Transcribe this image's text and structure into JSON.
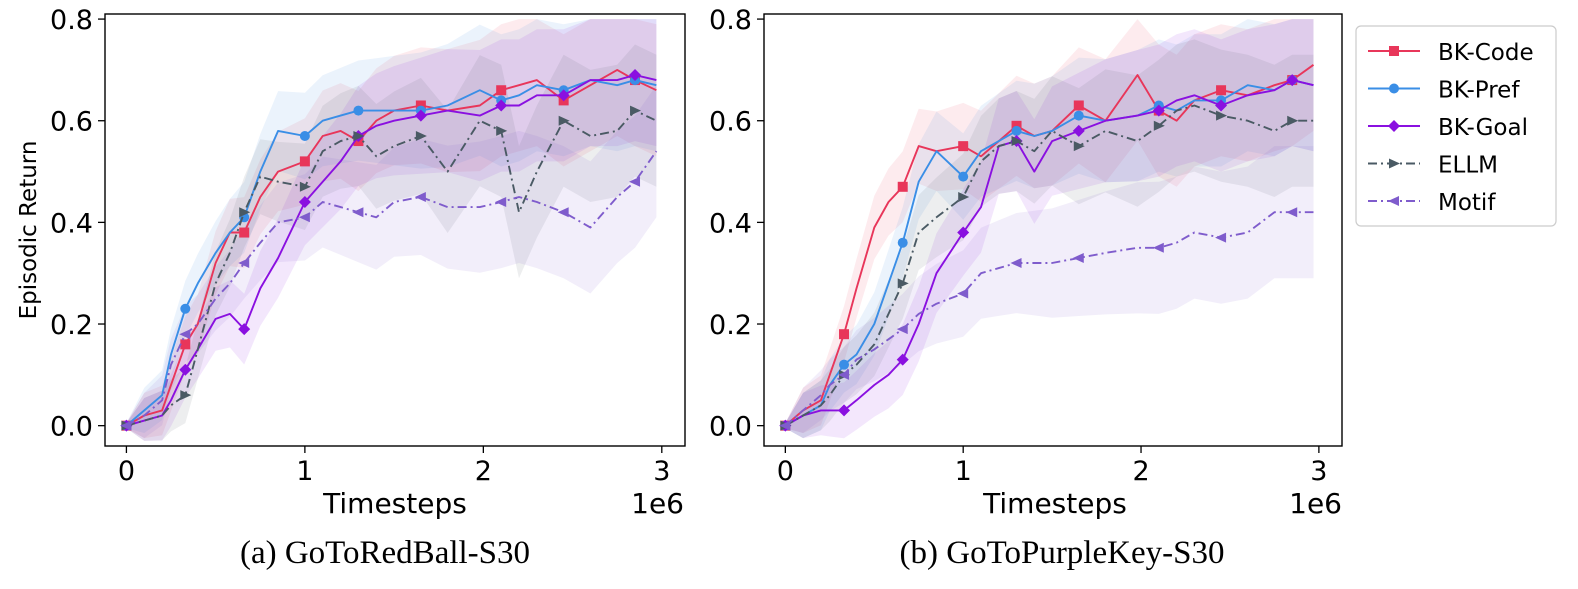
{
  "chart_data": [
    {
      "type": "line",
      "caption": "(a) GoToRedBall-S30",
      "xlabel": "Timesteps",
      "ylabel": "Episodic Return",
      "x_multiplier_label": "1e6",
      "xlim": [
        -0.12,
        3.13
      ],
      "ylim": [
        -0.04,
        0.81
      ],
      "xticks": [
        0,
        1,
        2,
        3
      ],
      "yticks": [
        0.0,
        0.2,
        0.4,
        0.6,
        0.8
      ],
      "series": [
        {
          "name": "BK-Code",
          "x": [
            0,
            0.1,
            0.2,
            0.25,
            0.33,
            0.4,
            0.5,
            0.58,
            0.66,
            0.75,
            0.85,
            1.0,
            1.1,
            1.2,
            1.3,
            1.4,
            1.5,
            1.65,
            1.8,
            1.98,
            2.1,
            2.2,
            2.3,
            2.45,
            2.6,
            2.75,
            2.85,
            2.97
          ],
          "y": [
            0.0,
            0.02,
            0.03,
            0.08,
            0.16,
            0.2,
            0.32,
            0.38,
            0.38,
            0.45,
            0.5,
            0.52,
            0.57,
            0.58,
            0.56,
            0.6,
            0.62,
            0.63,
            0.62,
            0.63,
            0.66,
            0.67,
            0.68,
            0.64,
            0.67,
            0.7,
            0.68,
            0.66
          ]
        },
        {
          "name": "BK-Pref",
          "x": [
            0,
            0.1,
            0.2,
            0.25,
            0.33,
            0.4,
            0.5,
            0.58,
            0.66,
            0.75,
            0.85,
            1.0,
            1.1,
            1.2,
            1.3,
            1.4,
            1.5,
            1.65,
            1.8,
            1.98,
            2.1,
            2.2,
            2.3,
            2.45,
            2.6,
            2.75,
            2.85,
            2.97
          ],
          "y": [
            0.0,
            0.03,
            0.06,
            0.14,
            0.23,
            0.28,
            0.34,
            0.38,
            0.41,
            0.5,
            0.58,
            0.57,
            0.6,
            0.61,
            0.62,
            0.62,
            0.62,
            0.62,
            0.63,
            0.66,
            0.64,
            0.65,
            0.67,
            0.66,
            0.68,
            0.67,
            0.68,
            0.67
          ]
        },
        {
          "name": "BK-Goal",
          "x": [
            0,
            0.1,
            0.2,
            0.25,
            0.33,
            0.4,
            0.5,
            0.58,
            0.66,
            0.75,
            0.85,
            1.0,
            1.1,
            1.2,
            1.3,
            1.4,
            1.5,
            1.65,
            1.8,
            1.98,
            2.1,
            2.2,
            2.3,
            2.45,
            2.6,
            2.75,
            2.85,
            2.97
          ],
          "y": [
            0.0,
            0.01,
            0.02,
            0.05,
            0.11,
            0.15,
            0.21,
            0.22,
            0.19,
            0.27,
            0.33,
            0.44,
            0.48,
            0.52,
            0.57,
            0.59,
            0.6,
            0.61,
            0.62,
            0.61,
            0.63,
            0.63,
            0.65,
            0.65,
            0.68,
            0.68,
            0.69,
            0.68
          ]
        },
        {
          "name": "ELLM",
          "x": [
            0,
            0.1,
            0.2,
            0.25,
            0.33,
            0.4,
            0.5,
            0.58,
            0.66,
            0.75,
            0.85,
            1.0,
            1.1,
            1.2,
            1.3,
            1.4,
            1.5,
            1.65,
            1.8,
            1.98,
            2.1,
            2.2,
            2.3,
            2.45,
            2.6,
            2.75,
            2.85,
            2.97
          ],
          "y": [
            0.0,
            0.01,
            0.02,
            0.04,
            0.06,
            0.15,
            0.28,
            0.34,
            0.42,
            0.49,
            0.48,
            0.47,
            0.54,
            0.56,
            0.57,
            0.53,
            0.55,
            0.57,
            0.5,
            0.6,
            0.58,
            0.42,
            0.5,
            0.6,
            0.57,
            0.58,
            0.62,
            0.6
          ]
        },
        {
          "name": "Motif",
          "x": [
            0,
            0.1,
            0.2,
            0.25,
            0.33,
            0.4,
            0.5,
            0.58,
            0.66,
            0.75,
            0.85,
            1.0,
            1.1,
            1.2,
            1.3,
            1.4,
            1.5,
            1.65,
            1.8,
            1.98,
            2.1,
            2.2,
            2.3,
            2.45,
            2.6,
            2.75,
            2.85,
            2.97
          ],
          "y": [
            0.0,
            0.02,
            0.05,
            0.12,
            0.18,
            0.2,
            0.25,
            0.28,
            0.32,
            0.36,
            0.4,
            0.41,
            0.44,
            0.43,
            0.42,
            0.41,
            0.44,
            0.45,
            0.43,
            0.43,
            0.44,
            0.45,
            0.44,
            0.42,
            0.39,
            0.45,
            0.48,
            0.54
          ]
        }
      ]
    },
    {
      "type": "line",
      "caption": "(b) GoToPurpleKey-S30",
      "xlabel": "Timesteps",
      "ylabel": "",
      "x_multiplier_label": "1e6",
      "xlim": [
        -0.12,
        3.13
      ],
      "ylim": [
        -0.04,
        0.81
      ],
      "xticks": [
        0,
        1,
        2,
        3
      ],
      "yticks": [
        0.0,
        0.2,
        0.4,
        0.6,
        0.8
      ],
      "series": [
        {
          "name": "BK-Code",
          "x": [
            0,
            0.1,
            0.2,
            0.25,
            0.33,
            0.4,
            0.5,
            0.58,
            0.66,
            0.75,
            0.85,
            1.0,
            1.1,
            1.2,
            1.3,
            1.4,
            1.5,
            1.65,
            1.8,
            1.98,
            2.1,
            2.2,
            2.3,
            2.45,
            2.6,
            2.75,
            2.85,
            2.97
          ],
          "y": [
            0.0,
            0.03,
            0.05,
            0.1,
            0.18,
            0.27,
            0.39,
            0.44,
            0.47,
            0.55,
            0.54,
            0.55,
            0.53,
            0.56,
            0.59,
            0.57,
            0.58,
            0.63,
            0.6,
            0.69,
            0.62,
            0.6,
            0.64,
            0.66,
            0.65,
            0.67,
            0.68,
            0.71
          ]
        },
        {
          "name": "BK-Pref",
          "x": [
            0,
            0.1,
            0.2,
            0.25,
            0.33,
            0.4,
            0.5,
            0.58,
            0.66,
            0.75,
            0.85,
            1.0,
            1.1,
            1.2,
            1.3,
            1.4,
            1.5,
            1.65,
            1.8,
            1.98,
            2.1,
            2.2,
            2.3,
            2.45,
            2.6,
            2.75,
            2.85,
            2.97
          ],
          "y": [
            0.0,
            0.02,
            0.04,
            0.08,
            0.12,
            0.14,
            0.2,
            0.28,
            0.36,
            0.48,
            0.54,
            0.49,
            0.54,
            0.56,
            0.58,
            0.57,
            0.58,
            0.61,
            0.6,
            0.61,
            0.63,
            0.62,
            0.64,
            0.64,
            0.67,
            0.66,
            0.68,
            0.67
          ]
        },
        {
          "name": "BK-Goal",
          "x": [
            0,
            0.1,
            0.2,
            0.25,
            0.33,
            0.4,
            0.5,
            0.58,
            0.66,
            0.75,
            0.85,
            1.0,
            1.1,
            1.2,
            1.3,
            1.4,
            1.5,
            1.65,
            1.8,
            1.98,
            2.1,
            2.2,
            2.3,
            2.45,
            2.6,
            2.75,
            2.85,
            2.97
          ],
          "y": [
            0.0,
            0.02,
            0.03,
            0.03,
            0.03,
            0.05,
            0.08,
            0.1,
            0.13,
            0.2,
            0.3,
            0.38,
            0.43,
            0.55,
            0.56,
            0.5,
            0.56,
            0.58,
            0.6,
            0.61,
            0.62,
            0.64,
            0.65,
            0.63,
            0.65,
            0.66,
            0.68,
            0.67
          ]
        },
        {
          "name": "ELLM",
          "x": [
            0,
            0.1,
            0.2,
            0.25,
            0.33,
            0.4,
            0.5,
            0.58,
            0.66,
            0.75,
            0.85,
            1.0,
            1.1,
            1.2,
            1.3,
            1.4,
            1.5,
            1.65,
            1.8,
            1.98,
            2.1,
            2.2,
            2.3,
            2.45,
            2.6,
            2.75,
            2.85,
            2.97
          ],
          "y": [
            0.0,
            0.02,
            0.04,
            0.06,
            0.1,
            0.12,
            0.16,
            0.22,
            0.28,
            0.38,
            0.41,
            0.45,
            0.52,
            0.55,
            0.56,
            0.54,
            0.58,
            0.55,
            0.58,
            0.56,
            0.59,
            0.62,
            0.63,
            0.61,
            0.6,
            0.58,
            0.6,
            0.6
          ]
        },
        {
          "name": "Motif",
          "x": [
            0,
            0.1,
            0.2,
            0.25,
            0.33,
            0.4,
            0.5,
            0.58,
            0.66,
            0.75,
            0.85,
            1.0,
            1.1,
            1.2,
            1.3,
            1.4,
            1.5,
            1.65,
            1.8,
            1.98,
            2.1,
            2.2,
            2.3,
            2.45,
            2.6,
            2.75,
            2.85,
            2.97
          ],
          "y": [
            0.0,
            0.03,
            0.06,
            0.08,
            0.1,
            0.13,
            0.15,
            0.17,
            0.19,
            0.22,
            0.24,
            0.26,
            0.3,
            0.31,
            0.32,
            0.32,
            0.32,
            0.33,
            0.34,
            0.35,
            0.35,
            0.36,
            0.38,
            0.37,
            0.38,
            0.42,
            0.42,
            0.42
          ]
        }
      ]
    }
  ],
  "style": {
    "series_colors": {
      "BK-Code": "#e8365a",
      "BK-Pref": "#3a8ee6",
      "BK-Goal": "#8a10e0",
      "ELLM": "#4a5a64",
      "Motif": "#7f5ccc"
    },
    "series_markers": {
      "BK-Code": "square",
      "BK-Pref": "circle",
      "BK-Goal": "diamond",
      "ELLM": "triangle-right",
      "Motif": "triangle-left"
    },
    "series_dash": {
      "BK-Code": "solid",
      "BK-Pref": "solid",
      "BK-Goal": "solid",
      "ELLM": "dash-dot",
      "Motif": "dash-dot"
    },
    "legend_position": "right of second panel, top",
    "grid": false
  }
}
